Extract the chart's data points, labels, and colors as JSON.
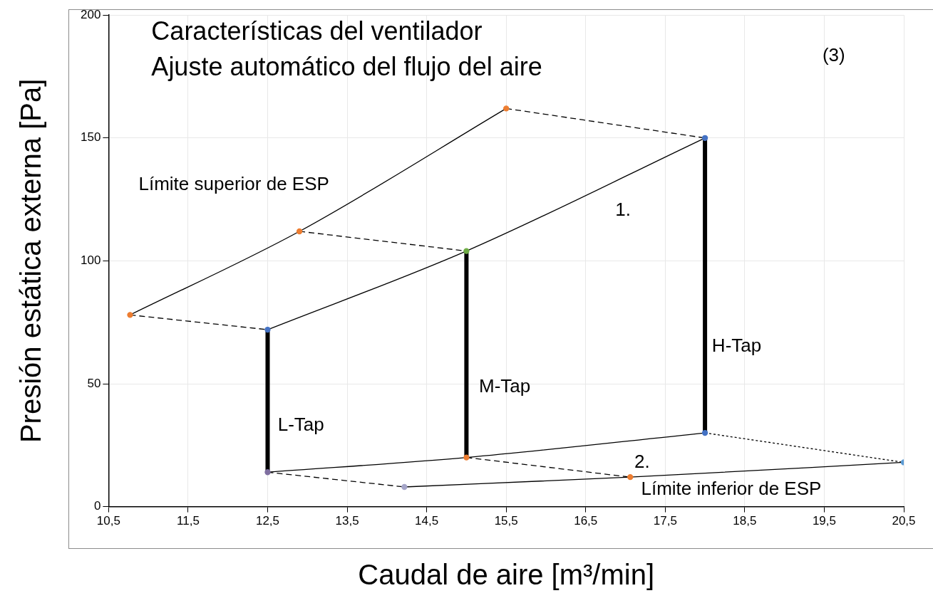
{
  "chart_data": {
    "type": "line",
    "title": "Características del ventilador",
    "subtitle": "Ajuste automático del flujo del aire",
    "xlabel": "Caudal de aire [m³/min]",
    "ylabel": "Presión estática externa [Pa]",
    "xlim": [
      10.5,
      20.5
    ],
    "xticks": [
      {
        "value": 10.5,
        "label": "10,5"
      },
      {
        "value": 11.5,
        "label": "11,5"
      },
      {
        "value": 12.5,
        "label": "12,5"
      },
      {
        "value": 13.5,
        "label": "13,5"
      },
      {
        "value": 14.5,
        "label": "14,5"
      },
      {
        "value": 15.5,
        "label": "15,5"
      },
      {
        "value": 16.5,
        "label": "16,5"
      },
      {
        "value": 17.5,
        "label": "17,5"
      },
      {
        "value": 18.5,
        "label": "18,5"
      },
      {
        "value": 19.5,
        "label": "19,5"
      },
      {
        "value": 20.5,
        "label": "20,5"
      }
    ],
    "ylim": [
      0,
      200
    ],
    "yticks": [
      0,
      50,
      100,
      150,
      200
    ],
    "grid": true,
    "series": [
      {
        "x": [
          10.77,
          12.9,
          15.5
        ],
        "values": [
          78,
          112,
          162
        ],
        "color": "#000000",
        "colors": [
          "#ed7d31",
          "#ed7d31",
          "#ed7d31"
        ],
        "line_style": "solid",
        "marker": "circle"
      },
      {
        "x": [
          12.5,
          15,
          18
        ],
        "values": [
          72,
          104,
          150
        ],
        "color": "#000000",
        "colors": [
          "#4472c4",
          "#70ad47",
          "#4472c4"
        ],
        "line_style": "solid",
        "marker": "circle"
      },
      {
        "x": [
          12.5,
          15,
          18
        ],
        "values": [
          14,
          20,
          30
        ],
        "color": "#000000",
        "colors": [
          "#7f6fa0",
          "#ed7d31",
          "#4472c4"
        ],
        "line_style": "solid",
        "marker": "circle"
      },
      {
        "x": [
          14.22,
          17.06,
          20.5
        ],
        "values": [
          8,
          12,
          18
        ],
        "color": "#000000",
        "colors": [
          "#a5a5c8",
          "#ed7d31",
          "#5b9bd5"
        ],
        "line_style": "solid",
        "marker": "circle"
      },
      {
        "x": [
          10.77,
          12.5
        ],
        "values": [
          78,
          72
        ],
        "color": "#000000",
        "line_style": "dashed",
        "marker": "none"
      },
      {
        "x": [
          12.9,
          15
        ],
        "values": [
          112,
          104
        ],
        "color": "#000000",
        "line_style": "dashed",
        "marker": "none"
      },
      {
        "x": [
          15.5,
          18
        ],
        "values": [
          162,
          150
        ],
        "color": "#000000",
        "line_style": "dashed",
        "marker": "none"
      },
      {
        "x": [
          12.5,
          14.22
        ],
        "values": [
          14,
          8
        ],
        "color": "#000000",
        "line_style": "dashed",
        "marker": "none"
      },
      {
        "x": [
          15,
          17.06
        ],
        "values": [
          20,
          12
        ],
        "color": "#000000",
        "line_style": "dashed",
        "marker": "none"
      },
      {
        "x": [
          18,
          20.5
        ],
        "values": [
          30,
          18
        ],
        "color": "#000000",
        "line_style": "dotted",
        "marker": "none"
      },
      {
        "x": [
          12.5,
          12.5
        ],
        "values": [
          14,
          72
        ],
        "color": "#000000",
        "line_style": "solid",
        "marker": "none"
      },
      {
        "x": [
          15,
          15
        ],
        "values": [
          20,
          104
        ],
        "color": "#000000",
        "line_style": "solid",
        "marker": "none"
      },
      {
        "x": [
          18,
          18
        ],
        "values": [
          30,
          150
        ],
        "color": "#000000",
        "line_style": "solid",
        "marker": "none"
      }
    ],
    "annotations": [
      "Límite superior de ESP",
      "1.",
      "2.",
      "Límite inferior de ESP",
      "L-Tap",
      "M-Tap",
      "H-Tap",
      "(3)"
    ]
  }
}
